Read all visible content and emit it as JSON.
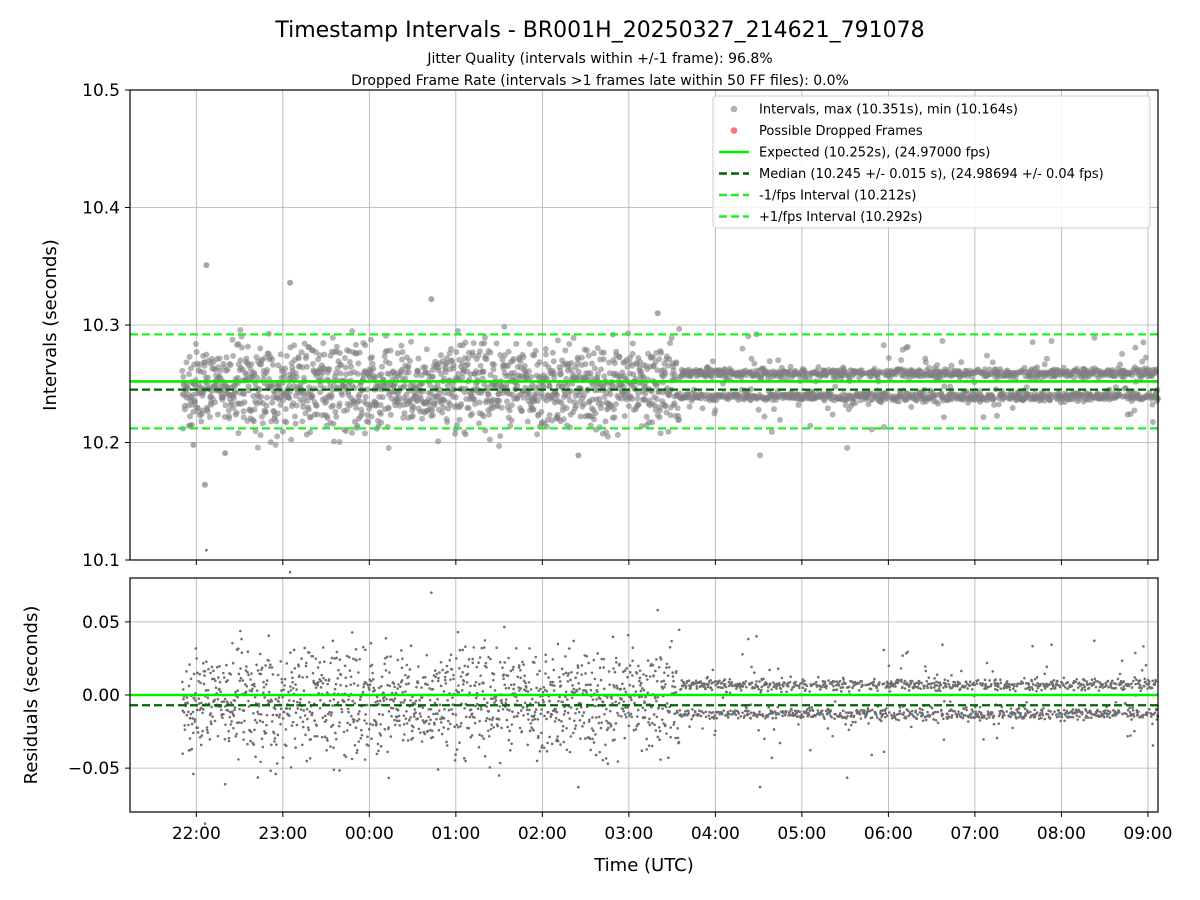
{
  "title": "Timestamp Intervals - BR001H_20250327_214621_791078",
  "subtitle_1": "Jitter Quality (intervals within +/-1 frame): 96.8%",
  "subtitle_2": "Dropped Frame Rate (intervals >1 frames late within 50 FF files): 0.0%",
  "colors": {
    "points": "#808080",
    "dropped": "#ff4d4d",
    "expected": "#00ee00",
    "median": "#006400",
    "fps_interval": "#22ee22",
    "grid": "#b0b0b0"
  },
  "chart_data": [
    {
      "type": "scatter",
      "panel": "top",
      "ylabel": "Intervals (seconds)",
      "ylim": [
        10.1,
        10.5
      ],
      "yticks": [
        "10.1",
        "10.2",
        "10.3",
        "10.4",
        "10.5"
      ],
      "xlim": [
        "21:14",
        "09:07"
      ],
      "grid": true,
      "legend_position": "top-right",
      "lines": {
        "expected": 10.252,
        "median": 10.245,
        "minus_interval": 10.212,
        "plus_interval": 10.292
      },
      "legend": [
        {
          "label": "Intervals, max (10.351s), min (10.164s)",
          "kind": "point",
          "color": "#a0a0a0"
        },
        {
          "label": "Possible Dropped Frames",
          "kind": "point",
          "color": "#ff4d4d"
        },
        {
          "label": "Expected (10.252s), (24.97000 fps)",
          "kind": "solid",
          "color": "#00ee00"
        },
        {
          "label": "Median (10.245 +/- 0.015 s), (24.98694 +/- 0.04 fps)",
          "kind": "dashed",
          "color": "#006400"
        },
        {
          "label": "-1/fps Interval (10.212s)",
          "kind": "dashed",
          "color": "#22ee22"
        },
        {
          "label": "+1/fps Interval (10.292s)",
          "kind": "dashed",
          "color": "#22ee22"
        }
      ],
      "series": [
        {
          "name": "Intervals",
          "time_range": [
            "21:50",
            "09:07"
          ],
          "max": 10.351,
          "min": 10.164,
          "sample_outliers": [
            {
              "x": "22:07",
              "y": 10.351
            },
            {
              "x": "22:06",
              "y": 10.164
            },
            {
              "x": "23:05",
              "y": 10.336
            },
            {
              "x": "00:43",
              "y": 10.322
            },
            {
              "x": "03:20",
              "y": 10.31
            },
            {
              "x": "02:25",
              "y": 10.189
            },
            {
              "x": "21:58",
              "y": 10.198
            },
            {
              "x": "22:20",
              "y": 10.191
            }
          ]
        }
      ]
    },
    {
      "type": "scatter",
      "panel": "bottom",
      "ylabel": "Residuals (seconds)",
      "xlabel": "Time (UTC)",
      "ylim": [
        -0.08,
        0.08
      ],
      "yticks": [
        "−0.05",
        "0.00",
        "0.05"
      ],
      "xticks": [
        "22:00",
        "23:00",
        "00:00",
        "01:00",
        "02:00",
        "03:00",
        "04:00",
        "05:00",
        "06:00",
        "07:00",
        "08:00",
        "09:00"
      ],
      "grid": true,
      "lines": {
        "expected": 0.0,
        "median": -0.007
      },
      "series": [
        {
          "name": "Residuals",
          "max": 0.071,
          "min": -0.063
        }
      ]
    }
  ]
}
